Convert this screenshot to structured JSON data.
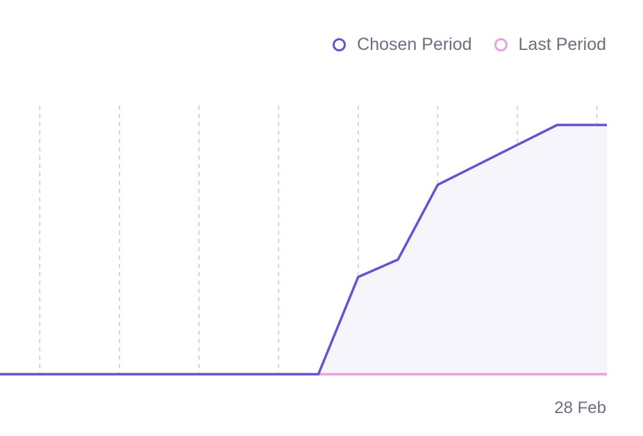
{
  "legend": {
    "items": [
      {
        "label": "Chosen Period",
        "color": "#6b4fd1"
      },
      {
        "label": "Last Period",
        "color": "#e8a0e2"
      }
    ]
  },
  "chart_data": {
    "type": "area",
    "x_tick_labels_shown": [
      "28 Feb"
    ],
    "x": [
      0,
      1,
      2,
      3,
      4,
      5,
      6,
      7,
      8,
      9,
      10,
      11,
      12,
      13,
      14,
      15,
      16
    ],
    "series": [
      {
        "name": "Chosen Period",
        "color": "#6b4fd1",
        "fill": "#f7f5fc",
        "values": [
          0,
          0,
          0,
          0,
          0,
          0,
          0,
          0,
          0,
          0.39,
          0.46,
          0.76,
          0.84,
          0.92,
          1.0,
          1.0,
          1.0
        ]
      },
      {
        "name": "Last Period",
        "color": "#e8a0e2",
        "values": [
          null,
          null,
          null,
          null,
          null,
          null,
          null,
          null,
          0,
          0,
          0,
          0,
          0,
          0,
          0,
          0,
          0
        ]
      }
    ],
    "gridlines_x": [
      1,
      3,
      5,
      7,
      9,
      11,
      13,
      15
    ],
    "grid": "vertical-dashed",
    "legend_position": "top-right",
    "ylim": [
      0,
      1
    ],
    "xlim": [
      0,
      15.25
    ]
  }
}
